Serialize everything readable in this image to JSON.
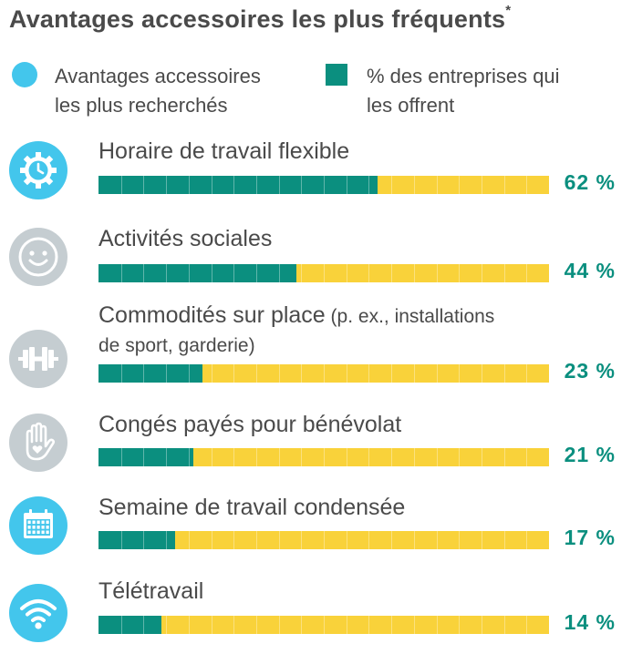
{
  "chart_data": {
    "type": "bar",
    "title": "Avantages accessoires les plus fréquents",
    "title_mark": "*",
    "legend": {
      "items": [
        {
          "label_line1": "Avantages accessoires",
          "label_line2": "les plus recherchés",
          "color": "#43c6ec",
          "shape": "circle"
        },
        {
          "label_line1": "% des entreprises qui",
          "label_line2": "les offrent",
          "color": "#0b8f7f",
          "shape": "square"
        }
      ]
    },
    "xlim": [
      0,
      100
    ],
    "bar_fill_color": "#0b8f7f",
    "bar_track_color": "#f9d23a",
    "categories": [
      {
        "label": "Horaire de travail flexible",
        "note": "",
        "value": 62,
        "value_text": "62 %",
        "icon": "clock-gear-icon",
        "icon_color": "#43c6ec"
      },
      {
        "label": "Activités sociales",
        "note": "",
        "value": 44,
        "value_text": "44 %",
        "icon": "smiley-icon",
        "icon_color": "#c5cdd1"
      },
      {
        "label": "Commodités sur place",
        "note": " (p. ex., installations",
        "label_line2": "de sport, garderie)",
        "value": 23,
        "value_text": "23 %",
        "icon": "dumbbell-icon",
        "icon_color": "#c5cdd1"
      },
      {
        "label": "Congés payés pour bénévolat",
        "note": "",
        "value": 21,
        "value_text": "21 %",
        "icon": "hand-heart-icon",
        "icon_color": "#c5cdd1"
      },
      {
        "label": "Semaine de travail condensée",
        "note": "",
        "value": 17,
        "value_text": "17 %",
        "icon": "calendar-icon",
        "icon_color": "#43c6ec"
      },
      {
        "label": "Télétravail",
        "note": "",
        "value": 14,
        "value_text": "14 %",
        "icon": "wifi-icon",
        "icon_color": "#43c6ec"
      }
    ]
  }
}
